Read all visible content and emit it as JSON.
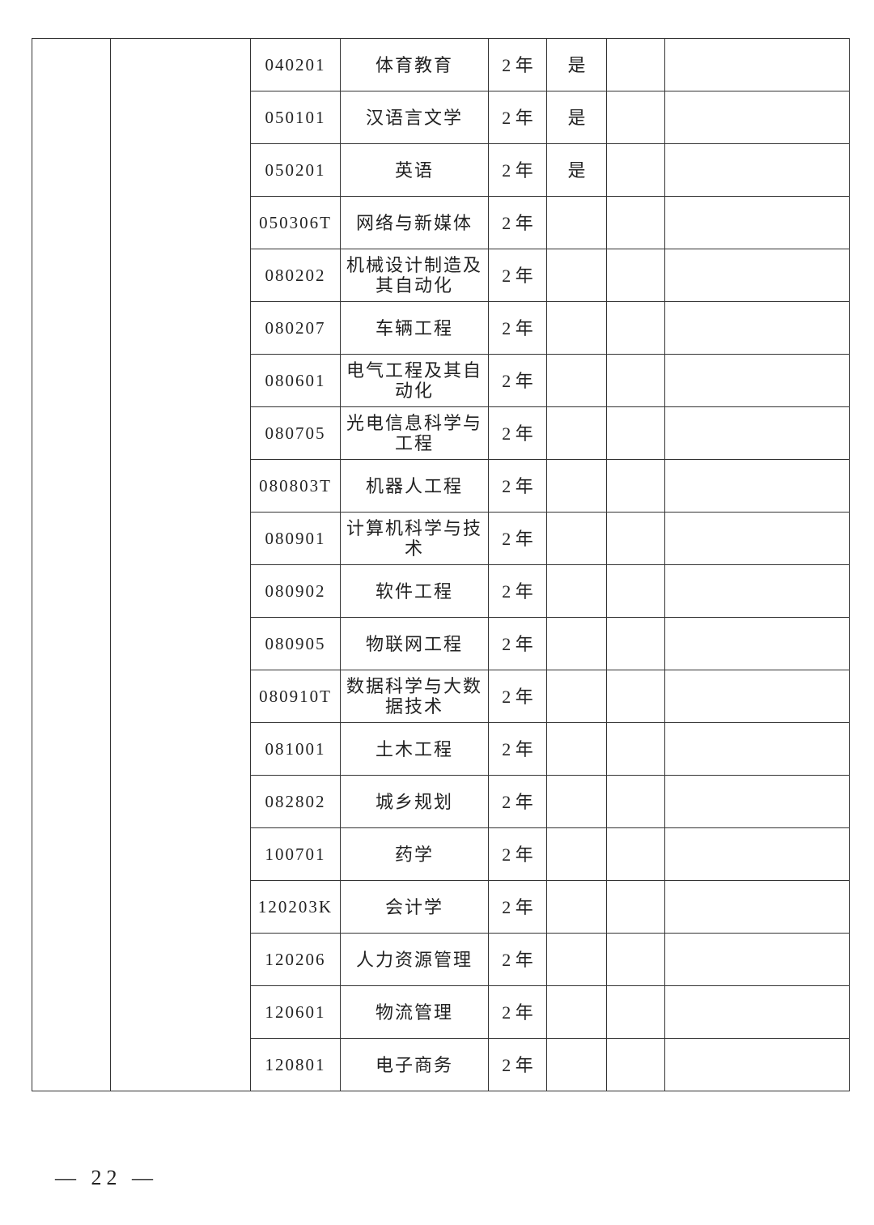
{
  "table": {
    "rows": [
      {
        "code": "040201",
        "name": [
          "体育教育"
        ],
        "years": "2 年",
        "mark": "是"
      },
      {
        "code": "050101",
        "name": [
          "汉语言文学"
        ],
        "years": "2 年",
        "mark": "是"
      },
      {
        "code": "050201",
        "name": [
          "英语"
        ],
        "years": "2 年",
        "mark": "是"
      },
      {
        "code": "050306T",
        "name": [
          "网络与新媒体"
        ],
        "years": "2 年"
      },
      {
        "code": "080202",
        "name": [
          "机械设计制造及",
          "其自动化"
        ],
        "years": "2 年"
      },
      {
        "code": "080207",
        "name": [
          "车辆工程"
        ],
        "years": "2 年"
      },
      {
        "code": "080601",
        "name": [
          "电气工程及其自",
          "动化"
        ],
        "years": "2 年"
      },
      {
        "code": "080705",
        "name": [
          "光电信息科学与",
          "工程"
        ],
        "years": "2 年"
      },
      {
        "code": "080803T",
        "name": [
          "机器人工程"
        ],
        "years": "2 年"
      },
      {
        "code": "080901",
        "name": [
          "计算机科学与技术"
        ],
        "years": "2 年"
      },
      {
        "code": "080902",
        "name": [
          "软件工程"
        ],
        "years": "2 年"
      },
      {
        "code": "080905",
        "name": [
          "物联网工程"
        ],
        "years": "2 年"
      },
      {
        "code": "080910T",
        "name": [
          "数据科学与大数",
          "据技术"
        ],
        "years": "2 年"
      },
      {
        "code": "081001",
        "name": [
          "土木工程"
        ],
        "years": "2 年"
      },
      {
        "code": "082802",
        "name": [
          "城乡规划"
        ],
        "years": "2 年"
      },
      {
        "code": "100701",
        "name": [
          "药学"
        ],
        "years": "2 年"
      },
      {
        "code": "120203K",
        "name": [
          "会计学"
        ],
        "years": "2 年"
      },
      {
        "code": "120206",
        "name": [
          "人力资源管理"
        ],
        "years": "2 年"
      },
      {
        "code": "120601",
        "name": [
          "物流管理"
        ],
        "years": "2 年"
      },
      {
        "code": "120801",
        "name": [
          "电子商务"
        ],
        "years": "2 年"
      }
    ]
  },
  "footer": {
    "page": "— 22 —"
  }
}
